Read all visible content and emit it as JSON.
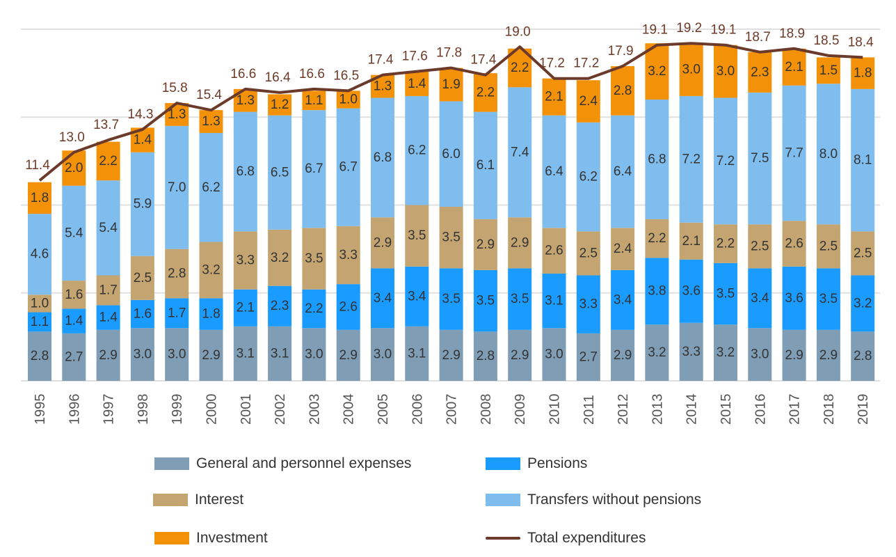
{
  "chart_data": {
    "type": "bar",
    "stacked": true,
    "title": "",
    "xlabel": "",
    "ylabel": "",
    "ylim": [
      0,
      20
    ],
    "grid": true,
    "yticks_visible": false,
    "categories": [
      "1995",
      "1996",
      "1997",
      "1998",
      "1999",
      "2000",
      "2001",
      "2002",
      "2003",
      "2004",
      "2005",
      "2006",
      "2007",
      "2008",
      "2009",
      "2010",
      "2011",
      "2012",
      "2013",
      "2014",
      "2015",
      "2016",
      "2017",
      "2018",
      "2019"
    ],
    "series": [
      {
        "name": "General and personnel expenses",
        "color": "#7f9db5",
        "values": [
          2.8,
          2.7,
          2.9,
          3.0,
          3.0,
          2.9,
          3.1,
          3.1,
          3.0,
          2.9,
          3.0,
          3.1,
          2.9,
          2.8,
          2.9,
          3.0,
          2.7,
          2.9,
          3.2,
          3.3,
          3.2,
          3.0,
          2.9,
          2.9,
          2.8
        ]
      },
      {
        "name": "Pensions",
        "color": "#1a9bff",
        "values": [
          1.1,
          1.4,
          1.4,
          1.6,
          1.7,
          1.8,
          2.1,
          2.3,
          2.2,
          2.6,
          3.4,
          3.4,
          3.5,
          3.5,
          3.5,
          3.1,
          3.3,
          3.4,
          3.8,
          3.6,
          3.5,
          3.4,
          3.6,
          3.5,
          3.2
        ]
      },
      {
        "name": "Interest",
        "color": "#c4a571",
        "values": [
          1.0,
          1.6,
          1.7,
          2.5,
          2.8,
          3.2,
          3.3,
          3.2,
          3.5,
          3.3,
          2.9,
          3.5,
          3.5,
          2.9,
          2.9,
          2.6,
          2.5,
          2.4,
          2.2,
          2.1,
          2.2,
          2.5,
          2.6,
          2.5,
          2.5
        ]
      },
      {
        "name": "Transfers without pensions",
        "color": "#7fbdee",
        "values": [
          4.6,
          5.4,
          5.4,
          5.9,
          7.0,
          6.2,
          6.8,
          6.5,
          6.7,
          6.7,
          6.8,
          6.2,
          6.0,
          6.1,
          7.4,
          6.4,
          6.2,
          6.4,
          6.8,
          7.2,
          7.2,
          7.5,
          7.7,
          8.0,
          8.1
        ]
      },
      {
        "name": "Investment",
        "color": "#f39208",
        "values": [
          1.8,
          2.0,
          2.2,
          1.4,
          1.3,
          1.3,
          1.3,
          1.2,
          1.1,
          1.0,
          1.3,
          1.4,
          1.9,
          2.2,
          2.2,
          2.1,
          2.4,
          2.8,
          3.2,
          3.0,
          3.0,
          2.3,
          2.1,
          1.5,
          1.8
        ]
      }
    ],
    "line_series": {
      "name": "Total expenditures",
      "color": "#6b3a2a",
      "values": [
        11.4,
        13.0,
        13.7,
        14.3,
        15.8,
        15.4,
        16.6,
        16.4,
        16.6,
        16.5,
        17.4,
        17.6,
        17.8,
        17.4,
        19.0,
        17.2,
        17.2,
        17.9,
        19.1,
        19.2,
        19.1,
        18.7,
        18.9,
        18.5,
        18.4
      ]
    },
    "legend_position": "bottom",
    "legend": [
      {
        "label": "General and personnel expenses",
        "type": "box",
        "color": "#7f9db5"
      },
      {
        "label": "Pensions",
        "type": "box",
        "color": "#1a9bff"
      },
      {
        "label": "Interest",
        "type": "box",
        "color": "#c4a571"
      },
      {
        "label": "Transfers without pensions",
        "type": "box",
        "color": "#7fbdee"
      },
      {
        "label": "Investment",
        "type": "box",
        "color": "#f39208"
      },
      {
        "label": "Total expenditures",
        "type": "line",
        "color": "#6b3a2a"
      }
    ]
  }
}
